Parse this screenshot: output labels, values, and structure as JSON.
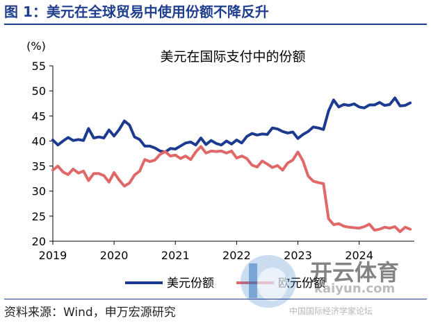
{
  "figure_title": "图 1：美元在全球贸易中使用份额不降反升",
  "source_note": "资料来源：Wind，申万宏源研究",
  "watermark": {
    "brand": "开云体育",
    "domain": "kaiyun.com",
    "sub": "中国国际经济学家论坛"
  },
  "colors": {
    "title": "#1f3f8e",
    "usd": "#1c3a8f",
    "eur": "#e06868"
  },
  "chart_data": {
    "type": "line",
    "title": "美元在国际支付中的份额",
    "ylabel": "(%)",
    "xlabel": "",
    "ylim": [
      20,
      55
    ],
    "yticks": [
      20,
      25,
      30,
      35,
      40,
      45,
      50,
      55
    ],
    "xlim": [
      2019,
      2024.9
    ],
    "xticks": [
      2019,
      2020,
      2021,
      2022,
      2023,
      2024
    ],
    "grid": false,
    "legend": "bottom",
    "series": [
      {
        "name": "美元份额",
        "x": [
          2019.0,
          2019.083,
          2019.167,
          2019.25,
          2019.333,
          2019.417,
          2019.5,
          2019.583,
          2019.667,
          2019.75,
          2019.833,
          2019.917,
          2020.0,
          2020.083,
          2020.167,
          2020.25,
          2020.333,
          2020.417,
          2020.5,
          2020.583,
          2020.667,
          2020.75,
          2020.833,
          2020.917,
          2021.0,
          2021.083,
          2021.167,
          2021.25,
          2021.333,
          2021.417,
          2021.5,
          2021.583,
          2021.667,
          2021.75,
          2021.833,
          2021.917,
          2022.0,
          2022.083,
          2022.167,
          2022.25,
          2022.333,
          2022.417,
          2022.5,
          2022.583,
          2022.667,
          2022.75,
          2022.833,
          2022.917,
          2023.0,
          2023.083,
          2023.167,
          2023.25,
          2023.333,
          2023.417,
          2023.5,
          2023.583,
          2023.667,
          2023.75,
          2023.833,
          2023.917,
          2024.0,
          2024.083,
          2024.167,
          2024.25,
          2024.333,
          2024.417,
          2024.5,
          2024.583,
          2024.667,
          2024.75,
          2024.833
        ],
        "y": [
          40.2,
          39.2,
          40.0,
          40.7,
          40.1,
          40.3,
          40.1,
          42.5,
          40.6,
          40.8,
          40.6,
          42.2,
          41.0,
          42.3,
          44.0,
          43.2,
          40.8,
          40.3,
          39.0,
          39.0,
          38.6,
          38.0,
          37.8,
          38.5,
          38.4,
          39.0,
          39.6,
          39.8,
          39.2,
          40.6,
          39.3,
          40.1,
          39.5,
          39.2,
          40.0,
          39.4,
          40.2,
          39.6,
          40.9,
          41.5,
          41.2,
          41.4,
          41.3,
          42.6,
          42.4,
          41.9,
          41.6,
          41.8,
          40.5,
          41.3,
          41.9,
          42.8,
          42.6,
          42.3,
          46.0,
          48.2,
          46.8,
          47.3,
          47.1,
          47.4,
          46.8,
          46.6,
          47.2,
          47.2,
          47.7,
          47.1,
          47.3,
          48.6,
          47.0,
          47.1,
          47.6
        ]
      },
      {
        "name": "欧元份额",
        "x": [
          2019.0,
          2019.083,
          2019.167,
          2019.25,
          2019.333,
          2019.417,
          2019.5,
          2019.583,
          2019.667,
          2019.75,
          2019.833,
          2019.917,
          2020.0,
          2020.083,
          2020.167,
          2020.25,
          2020.333,
          2020.417,
          2020.5,
          2020.583,
          2020.667,
          2020.75,
          2020.833,
          2020.917,
          2021.0,
          2021.083,
          2021.167,
          2021.25,
          2021.333,
          2021.417,
          2021.5,
          2021.583,
          2021.667,
          2021.75,
          2021.833,
          2021.917,
          2022.0,
          2022.083,
          2022.167,
          2022.25,
          2022.333,
          2022.417,
          2022.5,
          2022.583,
          2022.667,
          2022.75,
          2022.833,
          2022.917,
          2023.0,
          2023.083,
          2023.167,
          2023.25,
          2023.333,
          2023.417,
          2023.5,
          2023.583,
          2023.667,
          2023.75,
          2023.833,
          2023.917,
          2024.0,
          2024.083,
          2024.167,
          2024.25,
          2024.333,
          2024.417,
          2024.5,
          2024.583,
          2024.667,
          2024.75,
          2024.833
        ],
        "y": [
          34.2,
          35.0,
          33.8,
          33.3,
          34.4,
          33.6,
          34.0,
          32.1,
          33.5,
          33.5,
          33.1,
          31.8,
          33.7,
          32.2,
          31.0,
          31.6,
          33.2,
          34.0,
          36.3,
          35.9,
          36.2,
          37.3,
          37.9,
          37.0,
          37.2,
          36.5,
          37.0,
          36.3,
          37.8,
          38.9,
          37.6,
          38.0,
          37.9,
          38.0,
          37.6,
          38.0,
          36.6,
          37.0,
          36.5,
          35.2,
          34.8,
          36.0,
          35.4,
          34.7,
          35.1,
          34.2,
          35.6,
          36.2,
          37.8,
          36.0,
          33.0,
          32.0,
          31.7,
          31.5,
          24.5,
          23.3,
          23.5,
          23.0,
          22.8,
          22.7,
          22.6,
          22.9,
          23.4,
          22.2,
          22.4,
          22.8,
          22.6,
          22.9,
          21.9,
          22.8,
          22.4
        ]
      }
    ]
  }
}
